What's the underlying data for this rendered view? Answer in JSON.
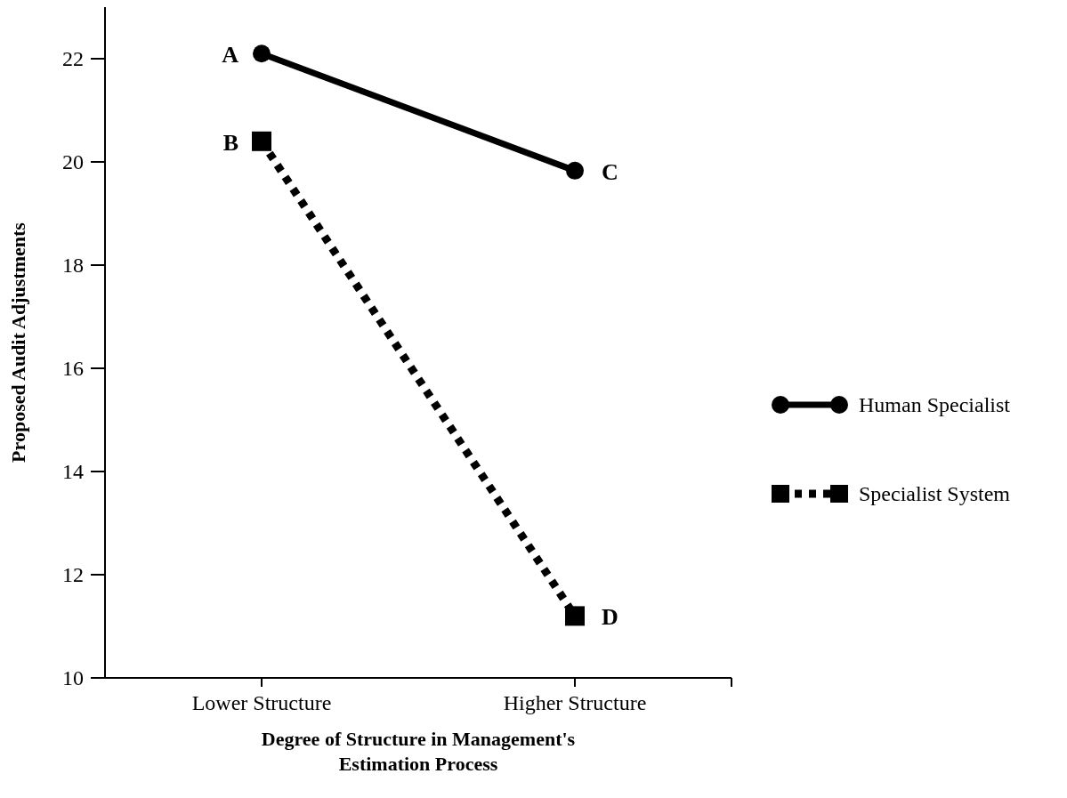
{
  "chart_data": {
    "type": "line",
    "xlabel": "Degree of Structure in Management's Estimation Process",
    "ylabel": "Proposed Audit Adjustments",
    "categories": [
      "Lower Structure",
      "Higher Structure"
    ],
    "ylim": [
      10,
      23
    ],
    "yticks": [
      10,
      12,
      14,
      16,
      18,
      20,
      22
    ],
    "legend": "right",
    "grid": false,
    "series": [
      {
        "name": "Human Specialist",
        "color": "#000000",
        "values": [
          22.1,
          19.83
        ],
        "marker": "circle",
        "line_style": "solid"
      },
      {
        "name": "Specialist System",
        "color": "#000000",
        "values": [
          20.4,
          11.2
        ],
        "marker": "square",
        "line_style": "dotted"
      }
    ],
    "annotations": [
      {
        "text": "A",
        "x": "Lower Structure",
        "y": 22.1
      },
      {
        "text": "B",
        "x": "Lower Structure",
        "y": 20.4
      },
      {
        "text": "C",
        "x": "Higher Structure",
        "y": 19.83
      },
      {
        "text": "D",
        "x": "Higher Structure",
        "y": 11.2
      }
    ]
  }
}
